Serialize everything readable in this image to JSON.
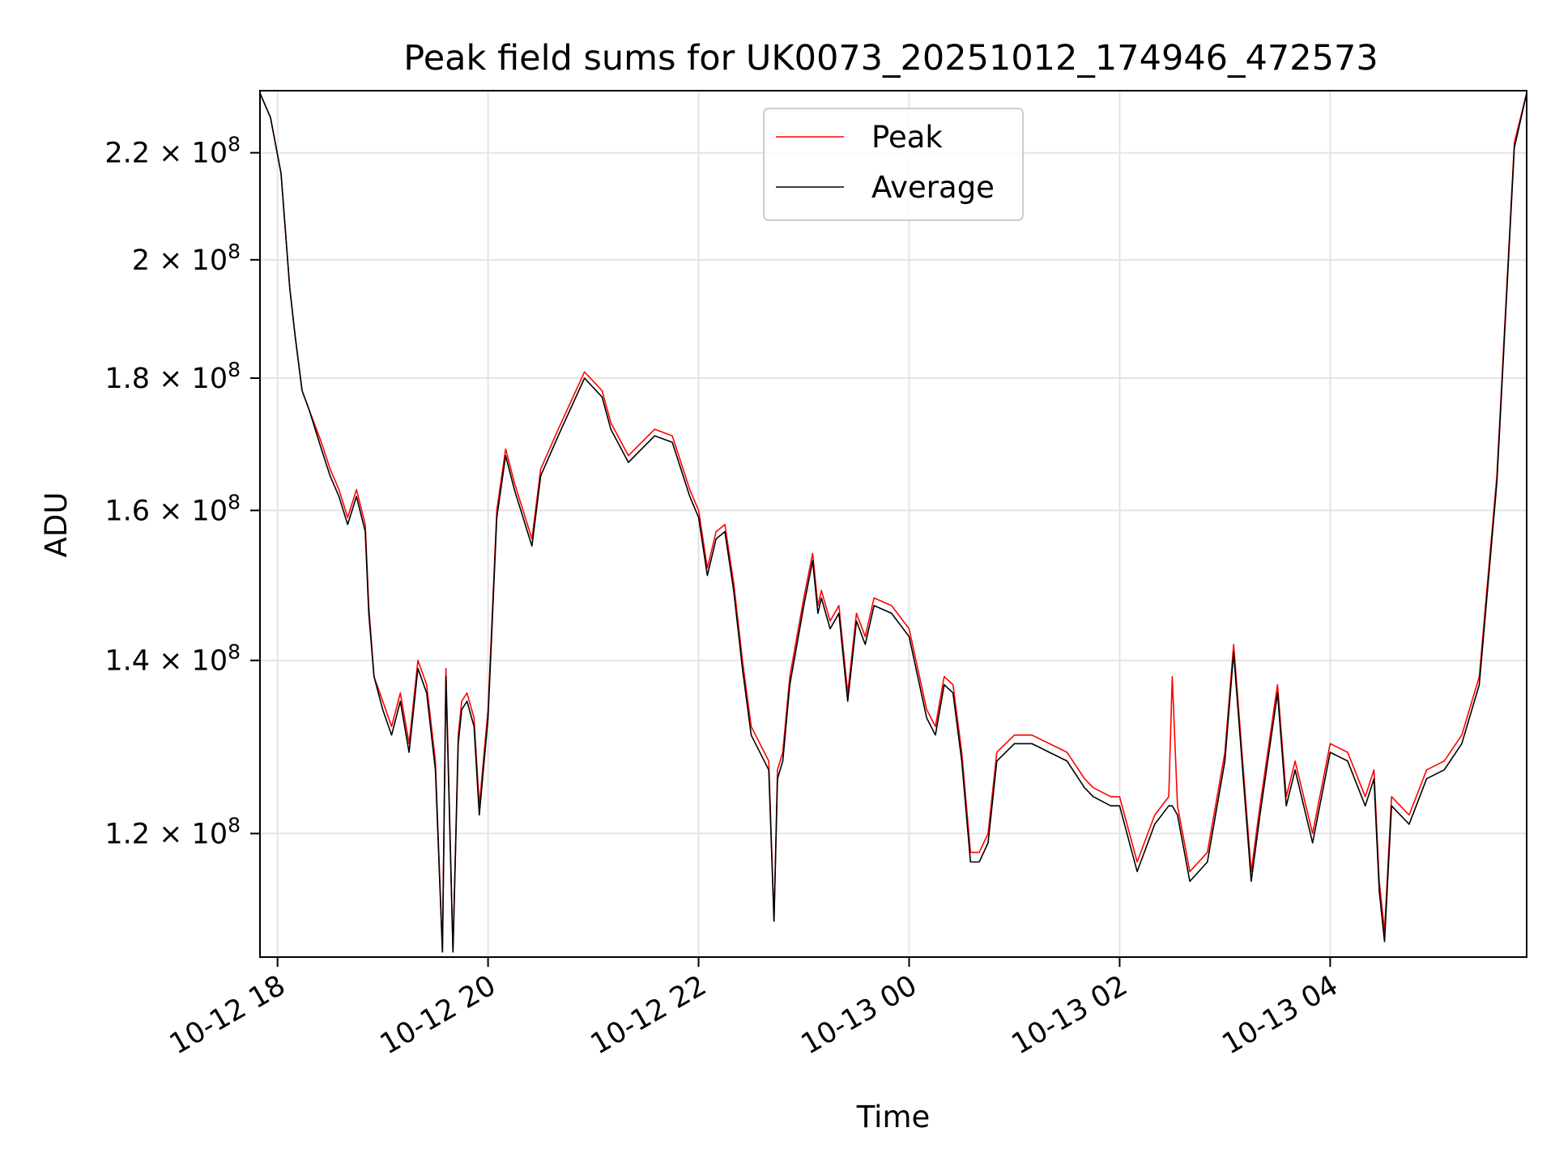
{
  "chart_data": {
    "type": "line",
    "title": "Peak field sums for UK0073_20251012_174946_472573",
    "xlabel": "Time",
    "ylabel": "ADU",
    "yscale": "log",
    "ylim": [
      107500000,
      232500000
    ],
    "xlim": [
      "2025-10-12 17:50",
      "2025-10-13 05:52"
    ],
    "grid": true,
    "legend_position": "top-center",
    "x_ticks": [
      {
        "value": "2025-10-12 18:00",
        "label": "10-12 18"
      },
      {
        "value": "2025-10-12 20:00",
        "label": "10-12 20"
      },
      {
        "value": "2025-10-12 22:00",
        "label": "10-12 22"
      },
      {
        "value": "2025-10-13 00:00",
        "label": "10-13 00"
      },
      {
        "value": "2025-10-13 02:00",
        "label": "10-13 02"
      },
      {
        "value": "2025-10-13 04:00",
        "label": "10-13 04"
      }
    ],
    "y_ticks": [
      {
        "value": 120000000,
        "mantissa": "1.2",
        "exponent": "8"
      },
      {
        "value": 140000000,
        "mantissa": "1.4",
        "exponent": "8"
      },
      {
        "value": 160000000,
        "mantissa": "1.6",
        "exponent": "8"
      },
      {
        "value": 180000000,
        "mantissa": "1.8",
        "exponent": "8"
      },
      {
        "value": 200000000,
        "mantissa": "2",
        "exponent": "8"
      },
      {
        "value": 220000000,
        "mantissa": "2.2",
        "exponent": "8"
      }
    ],
    "tick_times_sep": " × 10",
    "series": [
      {
        "name": "Peak",
        "color": "#ff0000",
        "x": [
          "2025-10-12 17:50",
          "2025-10-12 17:56",
          "2025-10-12 18:02",
          "2025-10-12 18:07",
          "2025-10-12 18:10",
          "2025-10-12 18:14",
          "2025-10-12 18:18",
          "2025-10-12 18:25",
          "2025-10-12 18:30",
          "2025-10-12 18:35",
          "2025-10-12 18:40",
          "2025-10-12 18:45",
          "2025-10-12 18:50",
          "2025-10-12 18:52",
          "2025-10-12 18:55",
          "2025-10-12 19:00",
          "2025-10-12 19:05",
          "2025-10-12 19:10",
          "2025-10-12 19:15",
          "2025-10-12 19:20",
          "2025-10-12 19:25",
          "2025-10-12 19:30",
          "2025-10-12 19:34",
          "2025-10-12 19:36",
          "2025-10-12 19:40",
          "2025-10-12 19:43",
          "2025-10-12 19:45",
          "2025-10-12 19:48",
          "2025-10-12 19:52",
          "2025-10-12 19:55",
          "2025-10-12 20:00",
          "2025-10-12 20:05",
          "2025-10-12 20:10",
          "2025-10-12 20:15",
          "2025-10-12 20:25",
          "2025-10-12 20:30",
          "2025-10-12 20:40",
          "2025-10-12 20:55",
          "2025-10-12 21:05",
          "2025-10-12 21:10",
          "2025-10-12 21:20",
          "2025-10-12 21:35",
          "2025-10-12 21:45",
          "2025-10-12 21:55",
          "2025-10-12 22:00",
          "2025-10-12 22:05",
          "2025-10-12 22:10",
          "2025-10-12 22:15",
          "2025-10-12 22:20",
          "2025-10-12 22:25",
          "2025-10-12 22:30",
          "2025-10-12 22:40",
          "2025-10-12 22:43",
          "2025-10-12 22:45",
          "2025-10-12 22:48",
          "2025-10-12 22:52",
          "2025-10-12 23:00",
          "2025-10-12 23:05",
          "2025-10-12 23:08",
          "2025-10-12 23:10",
          "2025-10-12 23:15",
          "2025-10-12 23:20",
          "2025-10-12 23:25",
          "2025-10-12 23:30",
          "2025-10-12 23:35",
          "2025-10-12 23:40",
          "2025-10-12 23:50",
          "2025-10-13 00:00",
          "2025-10-13 00:10",
          "2025-10-13 00:15",
          "2025-10-13 00:20",
          "2025-10-13 00:25",
          "2025-10-13 00:30",
          "2025-10-13 00:35",
          "2025-10-13 00:40",
          "2025-10-13 00:45",
          "2025-10-13 00:50",
          "2025-10-13 01:00",
          "2025-10-13 01:10",
          "2025-10-13 01:20",
          "2025-10-13 01:30",
          "2025-10-13 01:40",
          "2025-10-13 01:45",
          "2025-10-13 01:55",
          "2025-10-13 02:00",
          "2025-10-13 02:10",
          "2025-10-13 02:20",
          "2025-10-13 02:28",
          "2025-10-13 02:30",
          "2025-10-13 02:33",
          "2025-10-13 02:40",
          "2025-10-13 02:50",
          "2025-10-13 03:00",
          "2025-10-13 03:05",
          "2025-10-13 03:15",
          "2025-10-13 03:20",
          "2025-10-13 03:30",
          "2025-10-13 03:35",
          "2025-10-13 03:40",
          "2025-10-13 03:50",
          "2025-10-13 04:00",
          "2025-10-13 04:10",
          "2025-10-13 04:20",
          "2025-10-13 04:25",
          "2025-10-13 04:28",
          "2025-10-13 04:31",
          "2025-10-13 04:35",
          "2025-10-13 04:45",
          "2025-10-13 04:55",
          "2025-10-13 05:05",
          "2025-10-13 05:15",
          "2025-10-13 05:25",
          "2025-10-13 05:35",
          "2025-10-13 05:45",
          "2025-10-13 05:52"
        ],
        "y": [
          232000000,
          227000000,
          216000000,
          195000000,
          187000000,
          178000000,
          175000000,
          170000000,
          166000000,
          163000000,
          159000000,
          163000000,
          158000000,
          147000000,
          138000000,
          135000000,
          132000000,
          136000000,
          130000000,
          140000000,
          137000000,
          128000000,
          108000000,
          139000000,
          108000000,
          131000000,
          135000000,
          136000000,
          133000000,
          123000000,
          134000000,
          160000000,
          169000000,
          164000000,
          156000000,
          166000000,
          172000000,
          181000000,
          178000000,
          173000000,
          168000000,
          172000000,
          171000000,
          163000000,
          160000000,
          152000000,
          157000000,
          158000000,
          150000000,
          140000000,
          132000000,
          128000000,
          111000000,
          127000000,
          129000000,
          138000000,
          148000000,
          154000000,
          147000000,
          149000000,
          145000000,
          147000000,
          136000000,
          146000000,
          143000000,
          148000000,
          147000000,
          144000000,
          134000000,
          132000000,
          138000000,
          137000000,
          129000000,
          118000000,
          118000000,
          120000000,
          129000000,
          131000000,
          131000000,
          130000000,
          129000000,
          126000000,
          125000000,
          124000000,
          124000000,
          117000000,
          122000000,
          124000000,
          138000000,
          123000000,
          116000000,
          118000000,
          129000000,
          142000000,
          116000000,
          123000000,
          137000000,
          124000000,
          128000000,
          120000000,
          130000000,
          129000000,
          124000000,
          127000000,
          115000000,
          110000000,
          124000000,
          122000000,
          127000000,
          128000000,
          131000000,
          138000000,
          165000000,
          222000000,
          232000000
        ]
      },
      {
        "name": "Average",
        "color": "#000000",
        "x": [
          "2025-10-12 17:50",
          "2025-10-12 17:56",
          "2025-10-12 18:02",
          "2025-10-12 18:07",
          "2025-10-12 18:10",
          "2025-10-12 18:14",
          "2025-10-12 18:18",
          "2025-10-12 18:25",
          "2025-10-12 18:30",
          "2025-10-12 18:35",
          "2025-10-12 18:40",
          "2025-10-12 18:45",
          "2025-10-12 18:50",
          "2025-10-12 18:52",
          "2025-10-12 18:55",
          "2025-10-12 19:00",
          "2025-10-12 19:05",
          "2025-10-12 19:10",
          "2025-10-12 19:15",
          "2025-10-12 19:20",
          "2025-10-12 19:25",
          "2025-10-12 19:30",
          "2025-10-12 19:34",
          "2025-10-12 19:36",
          "2025-10-12 19:40",
          "2025-10-12 19:43",
          "2025-10-12 19:45",
          "2025-10-12 19:48",
          "2025-10-12 19:52",
          "2025-10-12 19:55",
          "2025-10-12 20:00",
          "2025-10-12 20:05",
          "2025-10-12 20:10",
          "2025-10-12 20:15",
          "2025-10-12 20:25",
          "2025-10-12 20:30",
          "2025-10-12 20:40",
          "2025-10-12 20:55",
          "2025-10-12 21:05",
          "2025-10-12 21:10",
          "2025-10-12 21:20",
          "2025-10-12 21:35",
          "2025-10-12 21:45",
          "2025-10-12 21:55",
          "2025-10-12 22:00",
          "2025-10-12 22:05",
          "2025-10-12 22:10",
          "2025-10-12 22:15",
          "2025-10-12 22:20",
          "2025-10-12 22:25",
          "2025-10-12 22:30",
          "2025-10-12 22:40",
          "2025-10-12 22:43",
          "2025-10-12 22:45",
          "2025-10-12 22:48",
          "2025-10-12 22:52",
          "2025-10-12 23:00",
          "2025-10-12 23:05",
          "2025-10-12 23:08",
          "2025-10-12 23:10",
          "2025-10-12 23:15",
          "2025-10-12 23:20",
          "2025-10-12 23:25",
          "2025-10-12 23:30",
          "2025-10-12 23:35",
          "2025-10-12 23:40",
          "2025-10-12 23:50",
          "2025-10-13 00:00",
          "2025-10-13 00:10",
          "2025-10-13 00:15",
          "2025-10-13 00:20",
          "2025-10-13 00:25",
          "2025-10-13 00:30",
          "2025-10-13 00:35",
          "2025-10-13 00:40",
          "2025-10-13 00:45",
          "2025-10-13 00:50",
          "2025-10-13 01:00",
          "2025-10-13 01:10",
          "2025-10-13 01:20",
          "2025-10-13 01:30",
          "2025-10-13 01:40",
          "2025-10-13 01:45",
          "2025-10-13 01:55",
          "2025-10-13 02:00",
          "2025-10-13 02:10",
          "2025-10-13 02:20",
          "2025-10-13 02:28",
          "2025-10-13 02:30",
          "2025-10-13 02:33",
          "2025-10-13 02:40",
          "2025-10-13 02:50",
          "2025-10-13 03:00",
          "2025-10-13 03:05",
          "2025-10-13 03:15",
          "2025-10-13 03:20",
          "2025-10-13 03:30",
          "2025-10-13 03:35",
          "2025-10-13 03:40",
          "2025-10-13 03:50",
          "2025-10-13 04:00",
          "2025-10-13 04:10",
          "2025-10-13 04:20",
          "2025-10-13 04:25",
          "2025-10-13 04:28",
          "2025-10-13 04:31",
          "2025-10-13 04:35",
          "2025-10-13 04:45",
          "2025-10-13 04:55",
          "2025-10-13 05:05",
          "2025-10-13 05:15",
          "2025-10-13 05:25",
          "2025-10-13 05:35",
          "2025-10-13 05:45",
          "2025-10-13 05:52"
        ],
        "y": [
          232000000,
          227000000,
          216000000,
          195000000,
          187000000,
          178000000,
          175000000,
          169000000,
          165000000,
          162000000,
          158000000,
          162000000,
          157000000,
          146000000,
          138000000,
          134000000,
          131000000,
          135000000,
          129000000,
          139000000,
          136000000,
          127000000,
          108000000,
          138000000,
          108000000,
          130000000,
          134000000,
          135000000,
          132000000,
          122000000,
          133000000,
          159000000,
          168000000,
          163000000,
          155000000,
          165000000,
          171000000,
          180000000,
          177000000,
          172000000,
          167000000,
          171000000,
          170000000,
          162000000,
          159000000,
          151000000,
          156000000,
          157000000,
          149000000,
          139000000,
          131000000,
          127000000,
          111000000,
          126000000,
          128000000,
          137000000,
          147000000,
          153000000,
          146000000,
          148000000,
          144000000,
          146000000,
          135000000,
          145000000,
          142000000,
          147000000,
          146000000,
          143000000,
          133000000,
          131000000,
          137000000,
          136000000,
          128000000,
          117000000,
          117000000,
          119000000,
          128000000,
          130000000,
          130000000,
          129000000,
          128000000,
          125000000,
          124000000,
          123000000,
          123000000,
          116000000,
          121000000,
          123000000,
          123000000,
          122000000,
          115000000,
          117000000,
          128000000,
          141000000,
          115000000,
          122000000,
          136000000,
          123000000,
          127000000,
          119000000,
          129000000,
          128000000,
          123000000,
          126000000,
          114000000,
          109000000,
          123000000,
          121000000,
          126000000,
          127000000,
          130000000,
          137000000,
          164000000,
          221000000,
          232000000
        ]
      }
    ]
  }
}
